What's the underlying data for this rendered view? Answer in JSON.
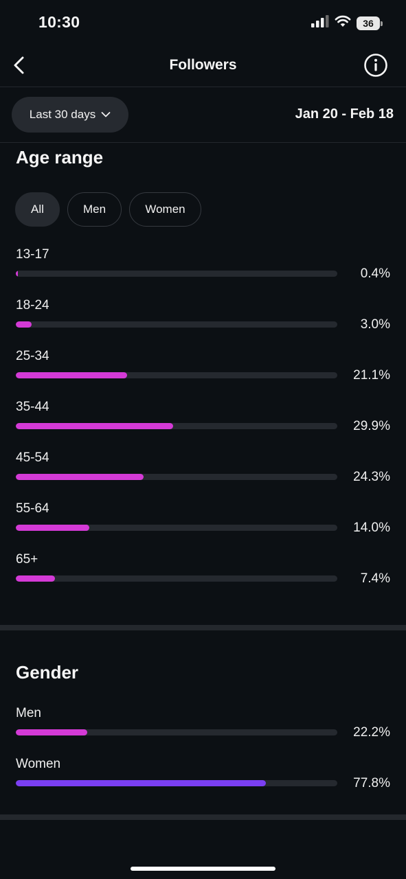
{
  "status_bar": {
    "time": "10:30",
    "battery": "36"
  },
  "header": {
    "title": "Followers",
    "back_icon": "chevron-left-icon",
    "info_icon": "info-icon"
  },
  "filter": {
    "range_label": "Last 30 days",
    "date_range": "Jan 20 - Feb 18"
  },
  "age_section": {
    "title": "Age range",
    "chips": [
      "All",
      "Men",
      "Women"
    ],
    "active_chip": "All",
    "rows": [
      {
        "label": "13-17",
        "value": "0.4%",
        "percent": 0.4
      },
      {
        "label": "18-24",
        "value": "3.0%",
        "percent": 3.0
      },
      {
        "label": "25-34",
        "value": "21.1%",
        "percent": 21.1
      },
      {
        "label": "35-44",
        "value": "29.9%",
        "percent": 29.9
      },
      {
        "label": "45-54",
        "value": "24.3%",
        "percent": 24.3
      },
      {
        "label": "55-64",
        "value": "14.0%",
        "percent": 14.0
      },
      {
        "label": "65+",
        "value": "7.4%",
        "percent": 7.4
      }
    ]
  },
  "gender_section": {
    "title": "Gender",
    "rows": [
      {
        "label": "Men",
        "value": "22.2%",
        "percent": 22.2,
        "color": "#d43ad6"
      },
      {
        "label": "Women",
        "value": "77.8%",
        "percent": 77.8,
        "color": "#7b3ff2"
      }
    ]
  },
  "colors": {
    "background": "#0c1014",
    "bar_pink": "#d43ad6",
    "bar_purple": "#7b3ff2",
    "track": "#25292f"
  }
}
